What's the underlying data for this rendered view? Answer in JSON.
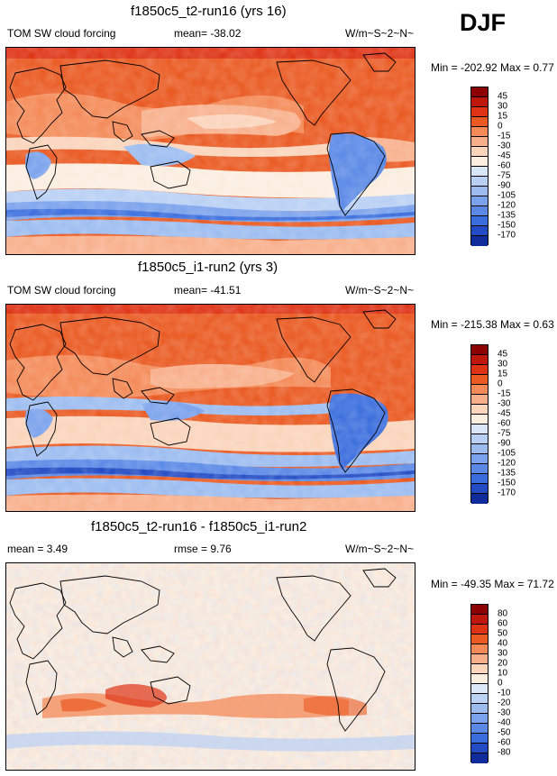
{
  "season": "DJF",
  "panels": [
    {
      "title": "f1850c5_t2-run16 (yrs 16)",
      "left_label": "TOM SW cloud forcing",
      "mid_label": "mean= -38.02",
      "units": "W/m~S~2~N~",
      "minmax": "Min = -202.92 Max =   0.77",
      "cbar_labels": [
        "45",
        "30",
        "15",
        "0",
        "-15",
        "-30",
        "-45",
        "-60",
        "-75",
        "-90",
        "-105",
        "-120",
        "-135",
        "-150",
        "-170"
      ],
      "cbar_colors": [
        "#8b0000",
        "#c0170d",
        "#de3315",
        "#ea5a22",
        "#f48a58",
        "#f8b08c",
        "#fad4bb",
        "#fbeee0",
        "#d9e6f7",
        "#b9d0f4",
        "#9cbcf0",
        "#7ba2ec",
        "#5a89e6",
        "#3b6edd",
        "#234bc4",
        "#102c9a"
      ]
    },
    {
      "title": "f1850c5_i1-run2 (yrs 3)",
      "left_label": "TOM SW cloud forcing",
      "mid_label": "mean= -41.51",
      "units": "W/m~S~2~N~",
      "minmax": "Min = -215.38 Max =   0.63",
      "cbar_labels": [
        "45",
        "30",
        "15",
        "0",
        "-15",
        "-30",
        "-45",
        "-60",
        "-75",
        "-90",
        "-105",
        "-120",
        "-135",
        "-150",
        "-170"
      ],
      "cbar_colors": [
        "#8b0000",
        "#c0170d",
        "#de3315",
        "#ea5a22",
        "#f48a58",
        "#f8b08c",
        "#fad4bb",
        "#fbeee0",
        "#d9e6f7",
        "#b9d0f4",
        "#9cbcf0",
        "#7ba2ec",
        "#5a89e6",
        "#3b6edd",
        "#234bc4",
        "#102c9a"
      ]
    },
    {
      "title": "f1850c5_t2-run16 - f1850c5_i1-run2",
      "left_label": "mean =   3.49",
      "mid_label": "rmse =   9.76",
      "units": "W/m~S~2~N~",
      "minmax": "Min = -49.35 Max =  71.72",
      "cbar_labels": [
        "80",
        "60",
        "50",
        "40",
        "30",
        "20",
        "10",
        "0",
        "-10",
        "-20",
        "-30",
        "-40",
        "-50",
        "-60",
        "-80"
      ],
      "cbar_colors": [
        "#8b0000",
        "#c0170d",
        "#de3315",
        "#ea5a22",
        "#f48a58",
        "#f8b08c",
        "#fad4bb",
        "#fbeee0",
        "#dbe8f8",
        "#bcd3f5",
        "#9cbcf0",
        "#7ba2ec",
        "#5a89e6",
        "#3b6edd",
        "#234bc4",
        "#102c9a"
      ]
    }
  ],
  "chart_data": [
    {
      "type": "heatmap",
      "title": "f1850c5_t2-run16 (yrs 16)",
      "variable": "TOM SW cloud forcing",
      "season": "DJF",
      "mean": -38.02,
      "min": -202.92,
      "max": 0.77,
      "units": "W/m~S~2~N~",
      "contour_levels": [
        45,
        30,
        15,
        0,
        -15,
        -30,
        -45,
        -60,
        -75,
        -90,
        -105,
        -120,
        -135,
        -150,
        -170
      ]
    },
    {
      "type": "heatmap",
      "title": "f1850c5_i1-run2 (yrs 3)",
      "variable": "TOM SW cloud forcing",
      "season": "DJF",
      "mean": -41.51,
      "min": -215.38,
      "max": 0.63,
      "units": "W/m~S~2~N~",
      "contour_levels": [
        45,
        30,
        15,
        0,
        -15,
        -30,
        -45,
        -60,
        -75,
        -90,
        -105,
        -120,
        -135,
        -150,
        -170
      ]
    },
    {
      "type": "heatmap",
      "title": "f1850c5_t2-run16 - f1850c5_i1-run2",
      "season": "DJF",
      "mean": 3.49,
      "rmse": 9.76,
      "min": -49.35,
      "max": 71.72,
      "units": "W/m~S~2~N~",
      "contour_levels": [
        80,
        60,
        50,
        40,
        30,
        20,
        10,
        0,
        -10,
        -20,
        -30,
        -40,
        -50,
        -60,
        -80
      ]
    }
  ]
}
